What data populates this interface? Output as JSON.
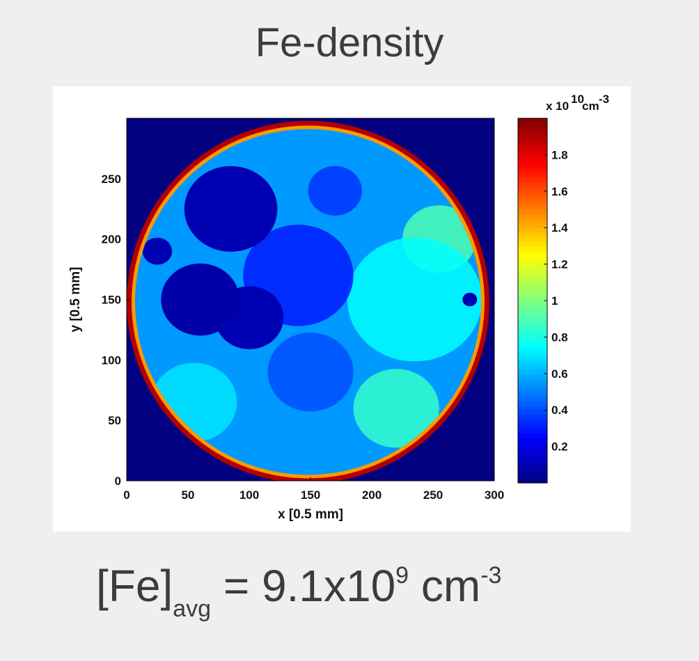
{
  "title": "Fe-density",
  "formula": {
    "lhs": "[Fe]",
    "subscript": "avg",
    "equals": "= 9.1x10",
    "exponent": "9",
    "unit": "cm",
    "unit_exponent": "-3"
  },
  "chart_data": {
    "type": "heatmap",
    "title": "",
    "xlabel": "x [0.5 mm]",
    "ylabel": "y [0.5 mm]",
    "xlim": [
      0,
      300
    ],
    "ylim": [
      0,
      300
    ],
    "xticks": [
      "0",
      "50",
      "100",
      "150",
      "200",
      "250",
      "300"
    ],
    "yticks": [
      "0",
      "50",
      "100",
      "150",
      "200",
      "250"
    ],
    "colorbar": {
      "label": "x 10   cm",
      "label_exponent_1": "10",
      "label_exponent_2": "-3",
      "ticks": [
        "0.2",
        "0.4",
        "0.6",
        "0.8",
        "1",
        "1.2",
        "1.4",
        "1.6",
        "1.8"
      ],
      "tick_values": [
        0.2,
        0.4,
        0.6,
        0.8,
        1.0,
        1.2,
        1.4,
        1.6,
        1.8
      ],
      "range": [
        0,
        2.0
      ],
      "colormap": "jet"
    },
    "wafer": {
      "shape": "circular",
      "center": [
        148,
        148
      ],
      "radius": 148,
      "edge_value": 1.9,
      "background_value": 0.0
    },
    "regions": [
      {
        "name": "low-density lobe upper-left",
        "center": [
          85,
          225
        ],
        "radius": 38,
        "value": 0.1
      },
      {
        "name": "low-density lobe left",
        "center": [
          60,
          150
        ],
        "radius": 32,
        "value": 0.08
      },
      {
        "name": "low-density lobe mid",
        "center": [
          100,
          135
        ],
        "radius": 28,
        "value": 0.1
      },
      {
        "name": "low-density left edge",
        "center": [
          25,
          190
        ],
        "radius": 12,
        "value": 0.1
      },
      {
        "name": "blue center band",
        "center": [
          140,
          170
        ],
        "radius": 45,
        "value": 0.3
      },
      {
        "name": "blue lower center",
        "center": [
          150,
          90
        ],
        "radius": 35,
        "value": 0.4
      },
      {
        "name": "blue upper",
        "center": [
          170,
          240
        ],
        "radius": 22,
        "value": 0.35
      },
      {
        "name": "cyan right field",
        "center": [
          235,
          150
        ],
        "radius": 55,
        "value": 0.75
      },
      {
        "name": "light right side",
        "center": [
          255,
          200
        ],
        "radius": 30,
        "value": 0.9
      },
      {
        "name": "cyan lower-left",
        "center": [
          55,
          65
        ],
        "radius": 35,
        "value": 0.7
      },
      {
        "name": "light lower-right",
        "center": [
          220,
          60
        ],
        "radius": 35,
        "value": 0.85
      },
      {
        "name": "dark spot right edge",
        "center": [
          280,
          150
        ],
        "radius": 6,
        "value": 0.1
      }
    ]
  },
  "colors": {
    "background": "#efefef",
    "panel": "#ffffff",
    "text": "#3a3d40",
    "plot_background": "#00008f"
  }
}
